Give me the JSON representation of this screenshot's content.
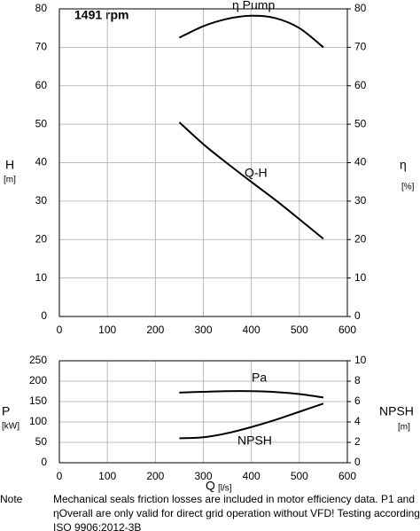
{
  "annotation": "1491 rpm",
  "chart_data": [
    {
      "type": "line",
      "xlim": [
        0,
        600
      ],
      "xticks": [
        0,
        100,
        200,
        300,
        400,
        500,
        600
      ],
      "ylim": [
        0,
        80
      ],
      "yticks": [
        0,
        10,
        20,
        30,
        40,
        50,
        60,
        70,
        80
      ],
      "y2lim": [
        0,
        80
      ],
      "y2ticks": [
        0,
        10,
        20,
        30,
        40,
        50,
        60,
        70,
        80
      ],
      "ylabel": "H",
      "ylabel_unit": "[m]",
      "y2label": "η",
      "y2label_unit": "[%]",
      "grid": true,
      "x": [
        250,
        300,
        350,
        400,
        450,
        500,
        550
      ],
      "series": [
        {
          "name": "η Pump",
          "color": "#000000",
          "axis": "y2",
          "values": [
            72.5,
            75.5,
            77.4,
            78.2,
            77.6,
            75,
            70
          ]
        },
        {
          "name": "Q-H",
          "color": "#000000",
          "values": [
            50.5,
            44.8,
            39.8,
            35,
            30.3,
            25.3,
            20.2
          ]
        }
      ]
    },
    {
      "type": "line",
      "xlim": [
        0,
        600
      ],
      "xticks": [
        0,
        100,
        200,
        300,
        400,
        500,
        600
      ],
      "ylim": [
        0,
        250
      ],
      "yticks": [
        0,
        50,
        100,
        150,
        200,
        250
      ],
      "y2lim": [
        0,
        10
      ],
      "y2ticks": [
        0,
        2,
        4,
        6,
        8,
        10
      ],
      "ylabel": "P",
      "ylabel_unit": "[kW]",
      "y2label": "NPSH",
      "y2label_unit": "[m]",
      "xlabel": "Q",
      "xlabel_unit": "[l/s]",
      "grid": true,
      "x": [
        250,
        300,
        350,
        400,
        450,
        500,
        550
      ],
      "series": [
        {
          "name": "Pa",
          "color": "#000000",
          "values": [
            172,
            174,
            175.5,
            175.5,
            173.5,
            168.5,
            160
          ]
        },
        {
          "name": "NPSH",
          "color": "#000000",
          "axis": "y2",
          "values": [
            2.4,
            2.5,
            2.9,
            3.5,
            4.2,
            5,
            5.8
          ]
        }
      ]
    }
  ],
  "note": {
    "label": "Note",
    "lines": [
      "Mechanical seals friction losses are included in motor efficiency data. P1 and",
      "ηOverall are only valid for direct grid operation without VFD! Testing according to",
      "ISO 9906:2012-3B"
    ]
  }
}
